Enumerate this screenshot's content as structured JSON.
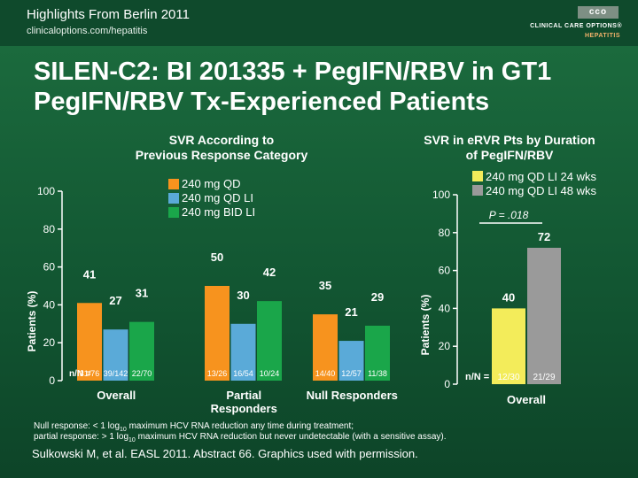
{
  "header": {
    "line1": "Highlights From Berlin 2011",
    "line2": "clinicaloptions.com/hepatitis",
    "logo_letters": "cco",
    "brand_name": "CLINICAL CARE OPTIONS®",
    "brand_sub": "HEPATITIS"
  },
  "title": {
    "line1": "SILEN-C2: BI 201335 + PegIFN/RBV in GT1",
    "line2": "PegIFN/RBV Tx-Experienced Patients"
  },
  "colors": {
    "orange": "#f7931e",
    "blue": "#5aaad8",
    "green": "#1aa64a",
    "yellow": "#f3ec5a",
    "gray": "#9a9a9a"
  },
  "chart_data": [
    {
      "type": "bar",
      "subtitle_lines": [
        "SVR According to",
        "Previous Response Category"
      ],
      "ylabel": "Patients (%)",
      "ylim": [
        0,
        100
      ],
      "yticks": [
        0,
        20,
        40,
        60,
        80,
        100
      ],
      "legend": [
        {
          "name": "240 mg QD",
          "color_key": "orange"
        },
        {
          "name": "240 mg QD LI",
          "color_key": "blue"
        },
        {
          "name": "240 mg BID LI",
          "color_key": "green"
        }
      ],
      "n_label": "n/N =",
      "groups": [
        {
          "label_lines": [
            "Overall"
          ],
          "values": [
            41,
            27,
            31
          ],
          "n": [
            "31/76",
            "39/142",
            "22/70"
          ]
        },
        {
          "label_lines": [
            "Partial",
            "Responders"
          ],
          "values": [
            50,
            30,
            42
          ],
          "n": [
            "13/26",
            "16/54",
            "10/24"
          ]
        },
        {
          "label_lines": [
            "Null Responders"
          ],
          "values": [
            35,
            21,
            29
          ],
          "n": [
            "14/40",
            "12/57",
            "11/38"
          ]
        }
      ]
    },
    {
      "type": "bar",
      "subtitle_lines": [
        "SVR in eRVR Pts by Duration",
        "of PegIFN/RBV"
      ],
      "ylabel": "Patients (%)",
      "ylim": [
        0,
        100
      ],
      "yticks": [
        0,
        20,
        40,
        60,
        80,
        100
      ],
      "legend": [
        {
          "name": "240 mg QD LI 24 wks",
          "color_key": "yellow"
        },
        {
          "name": "240 mg QD LI 48 wks",
          "color_key": "gray"
        }
      ],
      "annotation": "P = .018",
      "n_label": "n/N =",
      "groups": [
        {
          "label_lines": [
            "Overall"
          ],
          "values": [
            40,
            72
          ],
          "n": [
            "12/30",
            "21/29"
          ]
        }
      ]
    }
  ],
  "footnote": {
    "line1_a": "Null response: < 1 log",
    "line1_sub": "10",
    "line1_b": " maximum HCV RNA reduction any time during treatment;",
    "line2_a": "partial response: > 1 log",
    "line2_sub": "10",
    "line2_b": " maximum HCV RNA reduction but never undetectable (with a sensitive assay)."
  },
  "citation": "Sulkowski M, et al. EASL 2011. Abstract 66. Graphics used with permission."
}
